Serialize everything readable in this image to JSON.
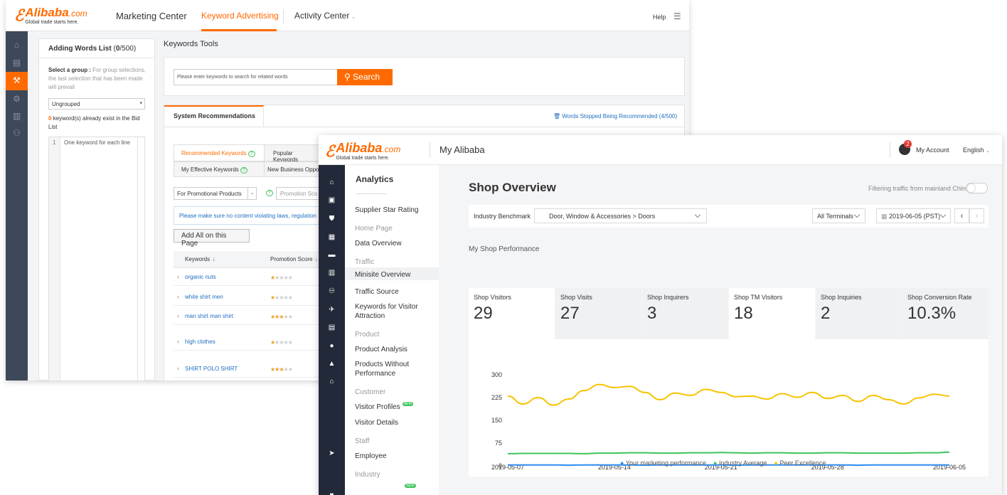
{
  "back_window": {
    "brand": {
      "name": "Alibaba",
      "domain": ".com",
      "tagline": "Global trade starts here."
    },
    "nav": {
      "marketing": "Marketing Center",
      "keyword": "Keyword Advertising",
      "activity": "Activity Center",
      "help": "Help"
    },
    "words_panel": {
      "title": "Adding Words List",
      "count_prefix": "(",
      "count": "0",
      "count_suffix": "/500)",
      "select_label": "Select a group :",
      "select_hint": "For group selections, the last selection that has been made will prevail",
      "group_value": "Ungrouped",
      "existing_count": "0",
      "existing_text": "keyword(s) already exist in the Bid List",
      "line_number": "1",
      "textarea_placeholder": "One keyword for each line"
    },
    "tools": {
      "title": "Keywords Tools",
      "search_placeholder": "Please enter keywords to search for related words",
      "search_button": "Search"
    },
    "recs": {
      "tab": "System Recommendations",
      "stopped_link": "Words Stopped Being Recommended",
      "stopped_count": "(4/500)",
      "subtabs": [
        "Recommended Keywords",
        "Popular Keywords",
        "My Effective Keywords",
        "New Business Oppo"
      ],
      "filter_value": "For Promotional Products",
      "promo_placeholder": "Promotion Sco",
      "notice": "Please make sure no content violating laws, regulation",
      "add_all": "Add All on this Page",
      "col_keywords": "Keywords",
      "col_promo": "Promotion Score",
      "rows": [
        {
          "keyword": "organic nuts",
          "stars": 1
        },
        {
          "keyword": "white shirt men",
          "stars": 1
        },
        {
          "keyword": "man shirt man shirt",
          "stars": 3
        },
        {
          "keyword": "high clothes",
          "stars": 1
        },
        {
          "keyword": "SHIRT POLO SHIRT",
          "stars": 3
        }
      ]
    }
  },
  "front_window": {
    "brand": {
      "name": "Alibaba",
      "domain": ".com",
      "tagline": "Global trade starts here."
    },
    "title": "My Alibaba",
    "account_badge": "2",
    "account": "My Account",
    "language": "English",
    "menu": {
      "heading": "Analytics",
      "items": {
        "supplier": "Supplier Star Rating",
        "home_group": "Home Page",
        "data_overview": "Data Overview",
        "traffic_group": "Traffic",
        "minisite": "Minisite Overview",
        "traffic_source": "Traffic Source",
        "keywords_visitor": "Keywords for Visitor Attraction",
        "product_group": "Product",
        "product_analysis": "Product Analysis",
        "products_without": "Products Without Performance",
        "customer_group": "Customer",
        "visitor_profiles": "Visitor Profiles",
        "visitor_details": "Visitor Details",
        "staff_group": "Staff",
        "employee": "Employee",
        "industry_group": "Industry",
        "new_badge": "NEW"
      }
    },
    "main": {
      "title": "Shop Overview",
      "filter_text": "Filtering traffic from mainland China",
      "benchmark_label": "Industry Benchmark",
      "benchmark_value": "Door, Window & Accessories > Doors",
      "terminals": "All Terminals",
      "date": "2019-06-05 (PST)",
      "section": "My Shop Performance",
      "metrics": [
        {
          "label": "Shop Visitors",
          "value": "29"
        },
        {
          "label": "Shop Visits",
          "value": "27"
        },
        {
          "label": "Shop Inquirers",
          "value": "3"
        },
        {
          "label": "Shop TM Visitors",
          "value": "18"
        },
        {
          "label": "Shop Inquiries",
          "value": "2"
        },
        {
          "label": "Shop Conversion Rate",
          "value": "10.3%"
        }
      ]
    }
  },
  "chart_data": {
    "type": "line",
    "x": [
      "2019-05-07",
      "2019-05-08",
      "2019-05-09",
      "2019-05-10",
      "2019-05-11",
      "2019-05-12",
      "2019-05-13",
      "2019-05-14",
      "2019-05-15",
      "2019-05-16",
      "2019-05-17",
      "2019-05-18",
      "2019-05-19",
      "2019-05-20",
      "2019-05-21",
      "2019-05-22",
      "2019-05-23",
      "2019-05-24",
      "2019-05-25",
      "2019-05-26",
      "2019-05-27",
      "2019-05-28",
      "2019-05-29",
      "2019-05-30",
      "2019-05-31",
      "2019-06-01",
      "2019-06-02",
      "2019-06-03",
      "2019-06-04",
      "2019-06-05"
    ],
    "x_ticks": [
      "2019-05-07",
      "2019-05-14",
      "2019-05-21",
      "2019-05-28",
      "2019-06-05"
    ],
    "y_ticks": [
      0,
      75,
      150,
      225,
      300
    ],
    "ylim": [
      0,
      300
    ],
    "series": [
      {
        "name": "Your marketing performance",
        "color": "#2d8cf0",
        "values": [
          3,
          3,
          3,
          3,
          2,
          3,
          3,
          3,
          3,
          2,
          3,
          3,
          3,
          3,
          3,
          2,
          3,
          3,
          3,
          3,
          3,
          3,
          3,
          2,
          3,
          3,
          3,
          3,
          3,
          3
        ]
      },
      {
        "name": "Industry Average",
        "color": "#3fc45c",
        "values": [
          40,
          41,
          41,
          41,
          41,
          40,
          42,
          42,
          43,
          43,
          42,
          42,
          43,
          43,
          44,
          43,
          42,
          43,
          43,
          42,
          42,
          43,
          43,
          42,
          42,
          42,
          42,
          43,
          43,
          45
        ]
      },
      {
        "name": "Peer Excellence",
        "color": "#f7c300",
        "values": [
          230,
          204,
          225,
          200,
          220,
          248,
          268,
          258,
          262,
          242,
          218,
          240,
          232,
          252,
          242,
          228,
          230,
          220,
          238,
          226,
          242,
          222,
          232,
          212,
          232,
          218,
          204,
          224,
          236,
          230
        ]
      }
    ]
  }
}
